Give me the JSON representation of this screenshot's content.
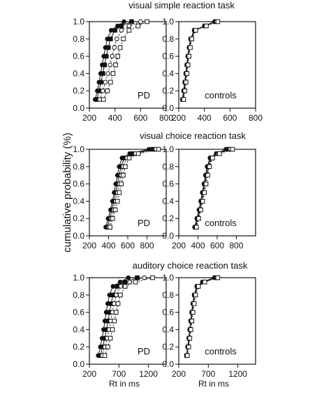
{
  "figure": {
    "ylabel": "cumulative probability (%)",
    "row_titles": [
      "visual simple reaction task",
      "visual choice reaction task",
      "auditory choice reaction task"
    ]
  },
  "chart_data": [
    {
      "type": "line",
      "row": 0,
      "col": 0,
      "panel_label": "PD",
      "xlabel": "",
      "xlim": [
        200,
        800
      ],
      "ylim": [
        0,
        1.0
      ],
      "xticks": [
        200,
        400,
        600,
        800
      ],
      "yticks": [
        0.0,
        0.2,
        0.4,
        0.6,
        0.8,
        1.0
      ],
      "ytick_labels": [
        "0.0",
        "0.2",
        "0.4",
        "0.6",
        "0.8",
        "1.0"
      ],
      "series": [
        {
          "marker": "filled-circle",
          "x": [
            245,
            262,
            275,
            288,
            300,
            312,
            325,
            340,
            370,
            420,
            470
          ],
          "y": [
            0.1,
            0.2,
            0.3,
            0.4,
            0.5,
            0.6,
            0.7,
            0.8,
            0.9,
            0.95,
            1.0
          ]
        },
        {
          "marker": "filled-square",
          "x": [
            258,
            275,
            290,
            305,
            318,
            332,
            348,
            365,
            400,
            450,
            530
          ],
          "y": [
            0.1,
            0.2,
            0.3,
            0.4,
            0.5,
            0.6,
            0.7,
            0.8,
            0.9,
            0.95,
            1.0
          ]
        },
        {
          "marker": "open-circle",
          "x": [
            280,
            305,
            325,
            345,
            362,
            378,
            395,
            415,
            450,
            510,
            600
          ],
          "y": [
            0.1,
            0.2,
            0.3,
            0.4,
            0.5,
            0.6,
            0.7,
            0.8,
            0.9,
            0.95,
            1.0
          ]
        },
        {
          "marker": "open-square",
          "x": [
            310,
            340,
            365,
            385,
            405,
            422,
            440,
            465,
            510,
            580,
            650
          ],
          "y": [
            0.1,
            0.2,
            0.3,
            0.4,
            0.5,
            0.6,
            0.7,
            0.8,
            0.9,
            0.95,
            1.0
          ]
        }
      ]
    },
    {
      "type": "line",
      "row": 0,
      "col": 1,
      "panel_label": "controls",
      "xlabel": "",
      "xlim": [
        200,
        800
      ],
      "ylim": [
        0,
        1.0
      ],
      "xticks": [
        200,
        400,
        600,
        800
      ],
      "yticks": [
        0.0,
        0.2,
        0.4,
        0.6,
        0.8,
        1.0
      ],
      "ytick_labels": [
        "0.0",
        "0.2",
        "0.4",
        "0.6",
        "0.8",
        "1.0"
      ],
      "series": [
        {
          "marker": "filled-circle",
          "x": [
            228,
            238,
            246,
            254,
            262,
            270,
            280,
            292,
            320,
            400,
            480
          ],
          "y": [
            0.1,
            0.2,
            0.3,
            0.4,
            0.5,
            0.6,
            0.7,
            0.8,
            0.9,
            0.95,
            1.0
          ]
        },
        {
          "marker": "filled-square",
          "x": [
            232,
            242,
            250,
            258,
            266,
            274,
            284,
            296,
            325,
            405,
            485
          ],
          "y": [
            0.1,
            0.2,
            0.3,
            0.4,
            0.5,
            0.6,
            0.7,
            0.8,
            0.9,
            0.95,
            1.0
          ]
        },
        {
          "marker": "open-circle",
          "x": [
            235,
            245,
            253,
            261,
            269,
            277,
            287,
            299,
            328,
            410,
            495
          ],
          "y": [
            0.1,
            0.2,
            0.3,
            0.4,
            0.5,
            0.6,
            0.7,
            0.8,
            0.9,
            0.95,
            1.0
          ]
        },
        {
          "marker": "open-square",
          "x": [
            238,
            248,
            256,
            264,
            272,
            280,
            290,
            302,
            332,
            415,
            505
          ],
          "y": [
            0.1,
            0.2,
            0.3,
            0.4,
            0.5,
            0.6,
            0.7,
            0.8,
            0.9,
            0.95,
            1.0
          ]
        }
      ]
    },
    {
      "type": "line",
      "row": 1,
      "col": 0,
      "panel_label": "PD",
      "xlabel": "",
      "xlim": [
        200,
        1000
      ],
      "ylim": [
        0,
        1.0
      ],
      "xticks": [
        200,
        400,
        600,
        800
      ],
      "yticks": [
        0.0,
        0.2,
        0.4,
        0.6,
        0.8,
        1.0
      ],
      "ytick_labels": [
        "0.0",
        "0.2",
        "0.4",
        "0.6",
        "0.8",
        "1.0"
      ],
      "series": [
        {
          "marker": "filled-circle",
          "x": [
            370,
            395,
            420,
            440,
            458,
            475,
            492,
            510,
            540,
            620,
            820
          ],
          "y": [
            0.1,
            0.2,
            0.3,
            0.4,
            0.5,
            0.6,
            0.7,
            0.8,
            0.9,
            0.95,
            1.0
          ]
        },
        {
          "marker": "filled-square",
          "x": [
            385,
            410,
            435,
            455,
            474,
            492,
            510,
            530,
            565,
            650,
            860
          ],
          "y": [
            0.1,
            0.2,
            0.3,
            0.4,
            0.5,
            0.6,
            0.7,
            0.8,
            0.9,
            0.95,
            1.0
          ]
        },
        {
          "marker": "open-circle",
          "x": [
            400,
            425,
            452,
            473,
            492,
            510,
            530,
            550,
            590,
            680,
            890
          ],
          "y": [
            0.1,
            0.2,
            0.3,
            0.4,
            0.5,
            0.6,
            0.7,
            0.8,
            0.9,
            0.95,
            1.0
          ]
        },
        {
          "marker": "open-square",
          "x": [
            415,
            442,
            470,
            492,
            512,
            532,
            552,
            574,
            615,
            710,
            920
          ],
          "y": [
            0.1,
            0.2,
            0.3,
            0.4,
            0.5,
            0.6,
            0.7,
            0.8,
            0.9,
            0.95,
            1.0
          ]
        }
      ]
    },
    {
      "type": "line",
      "row": 1,
      "col": 1,
      "panel_label": "controls",
      "xlabel": "",
      "xlim": [
        200,
        1000
      ],
      "ylim": [
        0,
        1.0
      ],
      "xticks": [
        200,
        400,
        600,
        800
      ],
      "yticks": [
        0.0,
        0.2,
        0.4,
        0.6,
        0.8,
        1.0
      ],
      "ytick_labels": [
        "0.0",
        "0.2",
        "0.4",
        "0.6",
        "0.8",
        "1.0"
      ],
      "series": [
        {
          "marker": "filled-circle",
          "x": [
            365,
            388,
            410,
            428,
            445,
            462,
            478,
            495,
            525,
            590,
            690
          ],
          "y": [
            0.1,
            0.2,
            0.3,
            0.4,
            0.5,
            0.6,
            0.7,
            0.8,
            0.9,
            0.95,
            1.0
          ]
        },
        {
          "marker": "filled-square",
          "x": [
            372,
            395,
            418,
            436,
            453,
            470,
            487,
            504,
            535,
            600,
            715
          ],
          "y": [
            0.1,
            0.2,
            0.3,
            0.4,
            0.5,
            0.6,
            0.7,
            0.8,
            0.9,
            0.95,
            1.0
          ]
        },
        {
          "marker": "open-circle",
          "x": [
            378,
            401,
            424,
            442,
            460,
            477,
            494,
            512,
            543,
            612,
            735
          ],
          "y": [
            0.1,
            0.2,
            0.3,
            0.4,
            0.5,
            0.6,
            0.7,
            0.8,
            0.9,
            0.95,
            1.0
          ]
        },
        {
          "marker": "open-square",
          "x": [
            384,
            407,
            430,
            449,
            467,
            484,
            502,
            520,
            552,
            625,
            760
          ],
          "y": [
            0.1,
            0.2,
            0.3,
            0.4,
            0.5,
            0.6,
            0.7,
            0.8,
            0.9,
            0.95,
            1.0
          ]
        }
      ]
    },
    {
      "type": "line",
      "row": 2,
      "col": 0,
      "panel_label": "PD",
      "xlabel": "Rt in ms",
      "xlim": [
        200,
        1500
      ],
      "ylim": [
        0,
        1.0
      ],
      "xticks": [
        200,
        700,
        1200
      ],
      "yticks": [
        0.0,
        0.2,
        0.4,
        0.6,
        0.8,
        1.0
      ],
      "ytick_labels": [
        "0.0",
        "0.2",
        "0.4",
        "0.6",
        "0.8",
        "1.0"
      ],
      "series": [
        {
          "marker": "filled-circle",
          "x": [
            350,
            385,
            415,
            440,
            462,
            485,
            510,
            540,
            600,
            720,
            860
          ],
          "y": [
            0.1,
            0.2,
            0.3,
            0.4,
            0.5,
            0.6,
            0.7,
            0.8,
            0.9,
            0.95,
            1.0
          ]
        },
        {
          "marker": "filled-square",
          "x": [
            385,
            425,
            460,
            490,
            515,
            540,
            568,
            600,
            670,
            800,
            1010
          ],
          "y": [
            0.1,
            0.2,
            0.3,
            0.4,
            0.5,
            0.6,
            0.7,
            0.8,
            0.9,
            0.95,
            1.0
          ]
        },
        {
          "marker": "open-circle",
          "x": [
            415,
            460,
            500,
            532,
            560,
            588,
            618,
            655,
            730,
            880,
            1130
          ],
          "y": [
            0.1,
            0.2,
            0.3,
            0.4,
            0.5,
            0.6,
            0.7,
            0.8,
            0.9,
            0.95,
            1.0
          ]
        },
        {
          "marker": "open-square",
          "x": [
            460,
            512,
            555,
            590,
            622,
            652,
            685,
            725,
            805,
            980,
            1270
          ],
          "y": [
            0.1,
            0.2,
            0.3,
            0.4,
            0.5,
            0.6,
            0.7,
            0.8,
            0.9,
            0.95,
            1.0
          ]
        }
      ]
    },
    {
      "type": "line",
      "row": 2,
      "col": 1,
      "panel_label": "controls",
      "xlabel": "Rt in ms",
      "xlim": [
        200,
        1500
      ],
      "ylim": [
        0,
        1.0
      ],
      "xticks": [
        200,
        700,
        1200
      ],
      "yticks": [
        0.0,
        0.2,
        0.4,
        0.6,
        0.8,
        1.0
      ],
      "ytick_labels": [
        "0.0",
        "0.2",
        "0.4",
        "0.6",
        "0.8",
        "1.0"
      ],
      "series": [
        {
          "marker": "filled-circle",
          "x": [
            330,
            350,
            368,
            385,
            400,
            418,
            438,
            460,
            505,
            600,
            800
          ],
          "y": [
            0.1,
            0.2,
            0.3,
            0.4,
            0.5,
            0.6,
            0.7,
            0.8,
            0.9,
            0.95,
            1.0
          ]
        },
        {
          "marker": "filled-square",
          "x": [
            335,
            356,
            375,
            392,
            408,
            426,
            446,
            468,
            515,
            615,
            825
          ],
          "y": [
            0.1,
            0.2,
            0.3,
            0.4,
            0.5,
            0.6,
            0.7,
            0.8,
            0.9,
            0.95,
            1.0
          ]
        },
        {
          "marker": "open-circle",
          "x": [
            340,
            362,
            381,
            398,
            415,
            433,
            453,
            476,
            524,
            628,
            845
          ],
          "y": [
            0.1,
            0.2,
            0.3,
            0.4,
            0.5,
            0.6,
            0.7,
            0.8,
            0.9,
            0.95,
            1.0
          ]
        },
        {
          "marker": "open-square",
          "x": [
            345,
            368,
            387,
            405,
            422,
            440,
            461,
            484,
            533,
            640,
            860
          ],
          "y": [
            0.1,
            0.2,
            0.3,
            0.4,
            0.5,
            0.6,
            0.7,
            0.8,
            0.9,
            0.95,
            1.0
          ]
        }
      ]
    }
  ]
}
